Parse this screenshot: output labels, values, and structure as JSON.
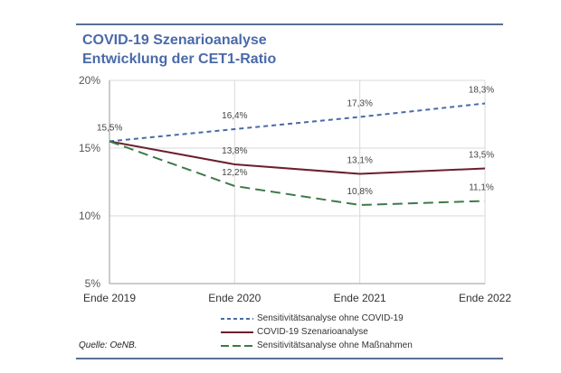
{
  "title_line1": "COVID-19 Szenarioanalyse",
  "title_line2": "Entwicklung der CET1-Ratio",
  "source": "Quelle: OeNB.",
  "chart_data": {
    "type": "line",
    "categories": [
      "Ende 2019",
      "Ende 2020",
      "Ende 2021",
      "Ende 2022"
    ],
    "ylim": [
      5,
      20
    ],
    "yticks": [
      5,
      10,
      15,
      20
    ],
    "ytick_labels": [
      "5%",
      "10%",
      "15%",
      "20%"
    ],
    "grid": true,
    "legend_position": "bottom",
    "series": [
      {
        "name": "Sensitivitätsanalyse ohne COVID-19",
        "values": [
          15.5,
          16.4,
          17.3,
          18.3
        ],
        "labels": [
          "15,5%",
          "16,4%",
          "17,3%",
          "18,3%"
        ],
        "color": "#4a6aa8",
        "dash": "short-dash"
      },
      {
        "name": "COVID-19 Szenarioanalyse",
        "values": [
          15.5,
          13.8,
          13.1,
          13.5
        ],
        "labels": [
          "",
          "13,8%",
          "13,1%",
          "13,5%"
        ],
        "color": "#6b1f2e",
        "dash": "solid"
      },
      {
        "name": "Sensitivitätsanalyse ohne Maßnahmen",
        "values": [
          15.5,
          12.2,
          10.8,
          11.1
        ],
        "labels": [
          "",
          "12,2%",
          "10,8%",
          "11,1%"
        ],
        "color": "#3e7a4a",
        "dash": "long-dash"
      }
    ]
  }
}
